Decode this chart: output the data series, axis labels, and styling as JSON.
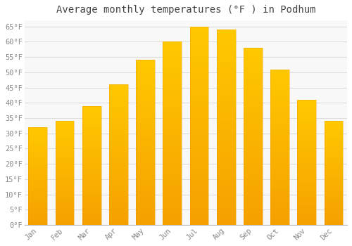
{
  "title": "Average monthly temperatures (°F ) in Podhum",
  "months": [
    "Jan",
    "Feb",
    "Mar",
    "Apr",
    "May",
    "Jun",
    "Jul",
    "Aug",
    "Sep",
    "Oct",
    "Nov",
    "Dec"
  ],
  "values": [
    32,
    34,
    39,
    46,
    54,
    60,
    65,
    64,
    58,
    51,
    41,
    34
  ],
  "bar_color_top": "#FFC200",
  "bar_color_bottom": "#F5A000",
  "background_color": "#FFFFFF",
  "plot_bg_color": "#F8F8F8",
  "grid_color": "#DDDDDD",
  "text_color": "#888888",
  "title_color": "#444444",
  "ylim": [
    0,
    67
  ],
  "yticks": [
    0,
    5,
    10,
    15,
    20,
    25,
    30,
    35,
    40,
    45,
    50,
    55,
    60,
    65
  ],
  "title_fontsize": 10,
  "tick_fontsize": 7.5
}
